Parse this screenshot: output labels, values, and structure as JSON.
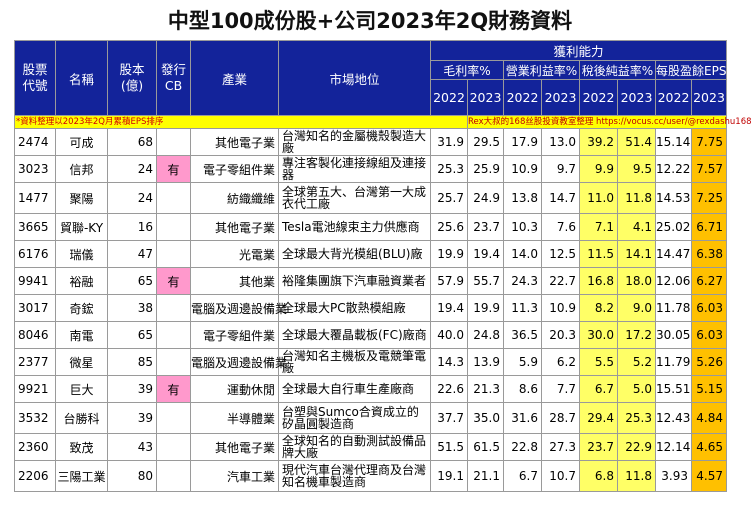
{
  "title": "中型100成份股+公司2023年2Q財務資料",
  "headers": {
    "code": [
      "股票",
      "代號"
    ],
    "name": "名稱",
    "capital": [
      "股本",
      "(億)"
    ],
    "cb": [
      "發行",
      "CB"
    ],
    "industry": "產業",
    "position": "市場地位",
    "profit_group": "獲利能力",
    "gross": "毛利率%",
    "operating": "營業利益率%",
    "net": "稅後純益率%",
    "eps": "每股盈餘EPS",
    "years": [
      "2022",
      "2023"
    ]
  },
  "note_left": "*資料整理以2023年2Q月累積EPS排序",
  "note_right": "Rex大叔的168丝股投資教室整理 https://vocus.cc/user/@rexdashu168",
  "rows": [
    {
      "code": "2474",
      "name": "可成",
      "capital": "68",
      "cb": "",
      "industry": "其他電子業",
      "position": "台灣知名的金屬機殼製造大廠",
      "gm22": "31.9",
      "gm23": "29.5",
      "om22": "17.9",
      "om23": "13.0",
      "nm22": "39.2",
      "nm23": "51.4",
      "eps22": "15.14",
      "eps23": "7.75"
    },
    {
      "code": "3023",
      "name": "信邦",
      "capital": "24",
      "cb": "有",
      "industry": "電子零組件業",
      "position": "專注客製化連接線組及連接器",
      "gm22": "25.3",
      "gm23": "25.9",
      "om22": "10.9",
      "om23": "9.7",
      "nm22": "9.9",
      "nm23": "9.5",
      "eps22": "12.22",
      "eps23": "7.57"
    },
    {
      "code": "1477",
      "name": "聚陽",
      "capital": "24",
      "cb": "",
      "industry": "紡織纖維",
      "position": "全球第五大、台灣第一大成衣代工廠",
      "gm22": "25.7",
      "gm23": "24.9",
      "om22": "13.8",
      "om23": "14.7",
      "nm22": "11.0",
      "nm23": "11.8",
      "eps22": "14.53",
      "eps23": "7.25"
    },
    {
      "code": "3665",
      "name": "貿聯-KY",
      "capital": "16",
      "cb": "",
      "industry": "其他電子業",
      "position": "Tesla電池線束主力供應商",
      "gm22": "25.6",
      "gm23": "23.7",
      "om22": "10.3",
      "om23": "7.6",
      "nm22": "7.1",
      "nm23": "4.1",
      "eps22": "25.02",
      "eps23": "6.71"
    },
    {
      "code": "6176",
      "name": "瑞儀",
      "capital": "47",
      "cb": "",
      "industry": "光電業",
      "position": "全球最大背光模組(BLU)廠",
      "gm22": "19.9",
      "gm23": "19.4",
      "om22": "14.0",
      "om23": "12.5",
      "nm22": "11.5",
      "nm23": "14.1",
      "eps22": "14.47",
      "eps23": "6.38"
    },
    {
      "code": "9941",
      "name": "裕融",
      "capital": "65",
      "cb": "有",
      "industry": "其他業",
      "position": "裕隆集團旗下汽車融資業者",
      "gm22": "57.9",
      "gm23": "55.7",
      "om22": "24.3",
      "om23": "22.7",
      "nm22": "16.8",
      "nm23": "18.0",
      "eps22": "12.06",
      "eps23": "6.27"
    },
    {
      "code": "3017",
      "name": "奇鋐",
      "capital": "38",
      "cb": "",
      "industry": "電腦及週邊設備業",
      "position": "全球最大PC散熱模組廠",
      "gm22": "19.4",
      "gm23": "19.9",
      "om22": "11.3",
      "om23": "10.9",
      "nm22": "8.2",
      "nm23": "9.0",
      "eps22": "11.78",
      "eps23": "6.03"
    },
    {
      "code": "8046",
      "name": "南電",
      "capital": "65",
      "cb": "",
      "industry": "電子零組件業",
      "position": "全球最大覆晶載板(FC)廠商",
      "gm22": "40.0",
      "gm23": "24.8",
      "om22": "36.5",
      "om23": "20.3",
      "nm22": "30.0",
      "nm23": "17.2",
      "eps22": "30.05",
      "eps23": "6.03"
    },
    {
      "code": "2377",
      "name": "微星",
      "capital": "85",
      "cb": "",
      "industry": "電腦及週邊設備業",
      "position": "台灣知名主機板及電競筆電廠",
      "gm22": "14.3",
      "gm23": "13.9",
      "om22": "5.9",
      "om23": "6.2",
      "nm22": "5.5",
      "nm23": "5.2",
      "eps22": "11.79",
      "eps23": "5.26"
    },
    {
      "code": "9921",
      "name": "巨大",
      "capital": "39",
      "cb": "有",
      "industry": "運動休閒",
      "position": "全球最大自行車生產廠商",
      "gm22": "22.6",
      "gm23": "21.3",
      "om22": "8.6",
      "om23": "7.7",
      "nm22": "6.7",
      "nm23": "5.0",
      "eps22": "15.51",
      "eps23": "5.15"
    },
    {
      "code": "3532",
      "name": "台勝科",
      "capital": "39",
      "cb": "",
      "industry": "半導體業",
      "position": "台塑與Sumco合資成立的矽晶圓製造商",
      "gm22": "37.7",
      "gm23": "35.0",
      "om22": "31.6",
      "om23": "28.7",
      "nm22": "29.4",
      "nm23": "25.3",
      "eps22": "12.43",
      "eps23": "4.84"
    },
    {
      "code": "2360",
      "name": "致茂",
      "capital": "43",
      "cb": "",
      "industry": "其他電子業",
      "position": "全球知名的自動測試設備品牌大廠",
      "gm22": "51.5",
      "gm23": "61.5",
      "om22": "22.8",
      "om23": "27.3",
      "nm22": "23.7",
      "nm23": "22.9",
      "eps22": "12.14",
      "eps23": "4.65"
    },
    {
      "code": "2206",
      "name": "三陽工業",
      "capital": "80",
      "cb": "",
      "industry": "汽車工業",
      "position": "現代汽車台灣代理商及台灣知名機車製造商",
      "gm22": "19.1",
      "gm23": "21.1",
      "om22": "6.7",
      "om23": "10.7",
      "nm22": "6.8",
      "nm23": "11.8",
      "eps22": "3.93",
      "eps23": "4.57"
    }
  ]
}
